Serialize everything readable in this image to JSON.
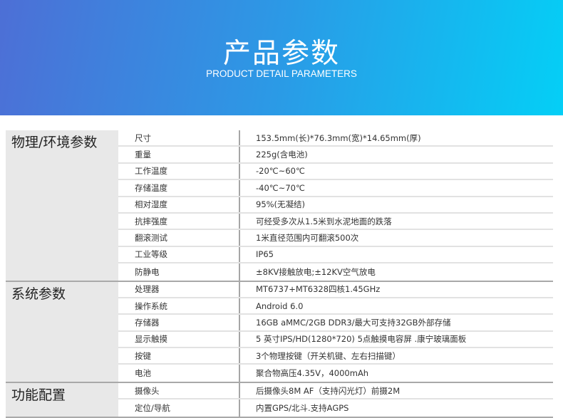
{
  "header": {
    "title": "产品参数",
    "subtitle": "PRODUCT DETAIL PARAMETERS"
  },
  "sections": [
    {
      "name": "物理/环境参数",
      "rows": [
        {
          "key": "尺寸",
          "value": "153.5mm(长)*76.3mm(宽)*14.65mm(厚)"
        },
        {
          "key": "重量",
          "value": "225g(含电池)"
        },
        {
          "key": "工作温度",
          "value": "-20℃~60℃"
        },
        {
          "key": "存储温度",
          "value": "-40℃~70℃"
        },
        {
          "key": "相对湿度",
          "value": "95%(无凝结)"
        },
        {
          "key": "抗摔强度",
          "value": "可经受多次从1.5米到水泥地面的跌落"
        },
        {
          "key": "翻滚测试",
          "value": "1米直径范围内可翻滚500次"
        },
        {
          "key": "工业等级",
          "value": "IP65"
        },
        {
          "key": "防静电",
          "value": "±8KV接触放电;±12KV空气放电"
        }
      ]
    },
    {
      "name": "系统参数",
      "rows": [
        {
          "key": "处理器",
          "value": "MT6737+MT6328四核1.45GHz"
        },
        {
          "key": "操作系统",
          "value": "Android 6.0"
        },
        {
          "key": "存储器",
          "value": "16GB aMMC/2GB DDR3/最大可支持32GB外部存储"
        },
        {
          "key": "显示触摸",
          "value": "5 英寸IPS/HD(1280*720)   5点触摸电容屏 .康宁玻璃面板"
        },
        {
          "key": "按键",
          "value": "3个物理按键（开关机键、左右扫描键）"
        },
        {
          "key": "电池",
          "value": "聚合物高压4.35V，4000mAh"
        }
      ]
    },
    {
      "name": "功能配置",
      "rows": [
        {
          "key": "摄像头",
          "value": "后摄像头8M AF（支持闪光灯）前摄2M"
        },
        {
          "key": "定位/导航",
          "value": "内置GPS/北斗.支持AGPS"
        }
      ]
    }
  ]
}
